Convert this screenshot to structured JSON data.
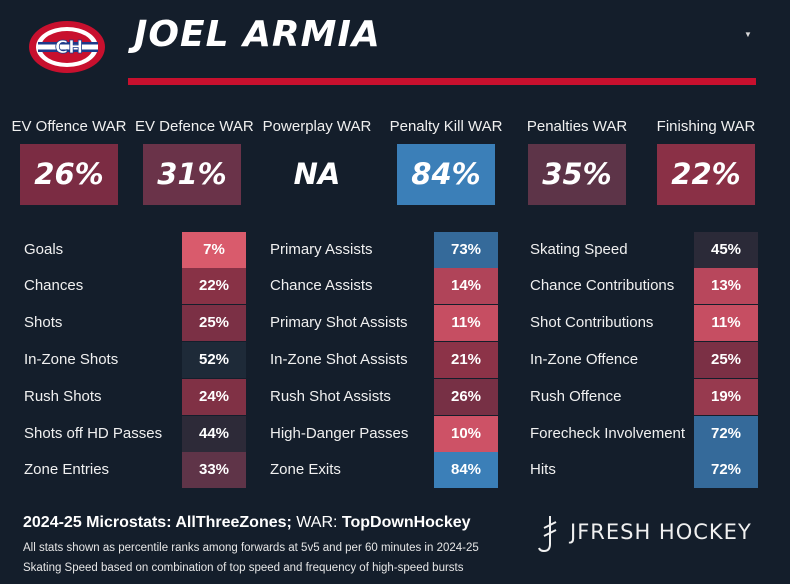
{
  "player_name": "JOEL ARMIA",
  "war": [
    {
      "label": "EV Offence WAR",
      "value": "26%",
      "color": "#7b2c43"
    },
    {
      "label": "EV Defence WAR",
      "value": "31%",
      "color": "#6a3349"
    },
    {
      "label": "Powerplay WAR",
      "value": "NA",
      "color": "#141e2b"
    },
    {
      "label": "Penalty Kill WAR",
      "value": "84%",
      "color": "#3b7fb8"
    },
    {
      "label": "Penalties WAR",
      "value": "35%",
      "color": "#5d3448"
    },
    {
      "label": "Finishing WAR",
      "value": "22%",
      "color": "#8a3046"
    }
  ],
  "stat_columns": [
    {
      "rows": [
        {
          "label": "Goals",
          "value": "7%",
          "color": "#d95b6c"
        },
        {
          "label": "Chances",
          "value": "22%",
          "color": "#883246"
        },
        {
          "label": "Shots",
          "value": "25%",
          "color": "#7b3045"
        },
        {
          "label": "In-Zone Shots",
          "value": "52%",
          "color": "#1e2a38"
        },
        {
          "label": "Rush Shots",
          "value": "24%",
          "color": "#803145"
        },
        {
          "label": "Shots off HD Passes",
          "value": "44%",
          "color": "#2d2a38"
        },
        {
          "label": "Zone Entries",
          "value": "33%",
          "color": "#5f3448"
        }
      ]
    },
    {
      "rows": [
        {
          "label": "Primary Assists",
          "value": "73%",
          "color": "#356a9a"
        },
        {
          "label": "Chance Assists",
          "value": "14%",
          "color": "#b04459"
        },
        {
          "label": "Primary Shot Assists",
          "value": "11%",
          "color": "#c64e62"
        },
        {
          "label": "In-Zone Shot Assists",
          "value": "21%",
          "color": "#8c3348"
        },
        {
          "label": "Rush Shot Assists",
          "value": "26%",
          "color": "#773045"
        },
        {
          "label": "High-Danger Passes",
          "value": "10%",
          "color": "#cd5266"
        },
        {
          "label": "Zone Exits",
          "value": "84%",
          "color": "#3b7fb8"
        }
      ]
    },
    {
      "rows": [
        {
          "label": "Skating Speed",
          "value": "45%",
          "color": "#2b2a38"
        },
        {
          "label": "Chance Contributions",
          "value": "13%",
          "color": "#b8475c"
        },
        {
          "label": "Shot Contributions",
          "value": "11%",
          "color": "#c64e62"
        },
        {
          "label": "In-Zone Offence",
          "value": "25%",
          "color": "#7b3045"
        },
        {
          "label": "Rush Offence",
          "value": "19%",
          "color": "#973a4f"
        },
        {
          "label": "Forecheck Involvement",
          "value": "72%",
          "color": "#356a9a"
        },
        {
          "label": "Hits",
          "value": "72%",
          "color": "#356a9a"
        }
      ]
    }
  ],
  "footer": {
    "prefix": "2024-25 Microstats: ",
    "microstats_source": "AllThreeZones;",
    "war_prefix": " WAR: ",
    "war_source": "TopDownHockey",
    "note1": "All stats shown as percentile ranks among forwards at 5v5 and per 60 minutes in 2024-25",
    "note2": "Skating Speed based on combination of top speed and frequency of high-speed bursts"
  },
  "brand": {
    "text": "JFRESH HOCKEY",
    "icon": "jfresh-logo-icon"
  },
  "team_logo": {
    "icon": "canadiens-logo-icon",
    "colors": {
      "red": "#c8102e",
      "blue": "#1d3a8a",
      "white": "#ffffff"
    }
  },
  "menu_icon": "caret-down-icon"
}
